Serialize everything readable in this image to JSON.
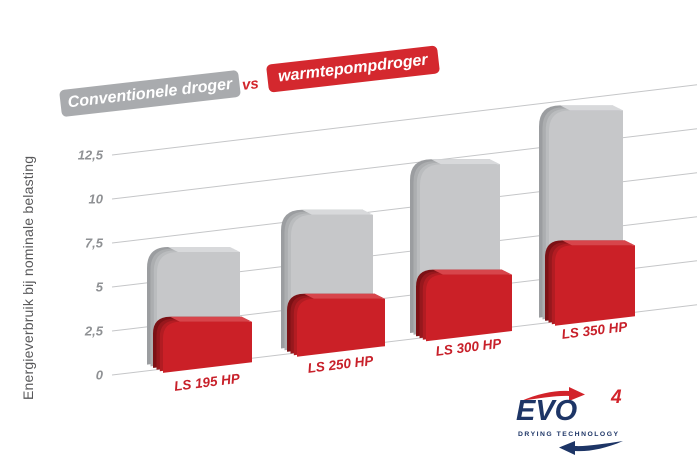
{
  "header": {
    "left_banner": "Conventionele droger",
    "vs": "vs",
    "right_banner": "warmtepompdroger"
  },
  "chart_data": {
    "type": "bar",
    "style": "3d-perspective",
    "title": "Conventionele droger vs warmtepompdroger",
    "ylabel": "Energieverbruik bij nominale belasting",
    "xlabel": "",
    "categories": [
      "LS 195 HP",
      "LS 250 HP",
      "LS 300 HP",
      "LS 350 HP"
    ],
    "series": [
      {
        "name": "Conventionele droger",
        "color": "#c6c7c9",
        "values": [
          6.4,
          7.6,
          9.6,
          11.8
        ]
      },
      {
        "name": "warmtepompdroger",
        "color": "#cb2027",
        "values": [
          2.6,
          3.0,
          3.5,
          4.3
        ]
      }
    ],
    "yticks": [
      "0",
      "2,5",
      "5",
      "7,5",
      "10",
      "12,5"
    ],
    "ytick_values": [
      0,
      2.5,
      5,
      7.5,
      10,
      12.5
    ],
    "ylim": [
      0,
      13.5
    ],
    "grid": true,
    "legend_position": "top-banners"
  },
  "logo": {
    "name": "EVO",
    "superscript": "4",
    "tagline": "DRYING TECHNOLOGY"
  },
  "colors": {
    "banner_grey": "#a9abae",
    "banner_red": "#d4282e",
    "vs_red": "#d2262c",
    "gridline": "#c5c6c8",
    "tick_label": "#8f9194",
    "axis_title": "#58585a",
    "category_label": "#c8202a",
    "logo_navy": "#1d3566",
    "logo_red": "#d2232a",
    "grey_bar": {
      "front": "#c6c7c9",
      "top": "#d8d9db",
      "sheets": [
        "#9b9da0",
        "#acaeb0",
        "#babcbe"
      ]
    },
    "red_bar": {
      "front": "#cb2027",
      "top": "#d7454b",
      "sheets": [
        "#7c1115",
        "#97181d",
        "#b21c22"
      ]
    }
  }
}
